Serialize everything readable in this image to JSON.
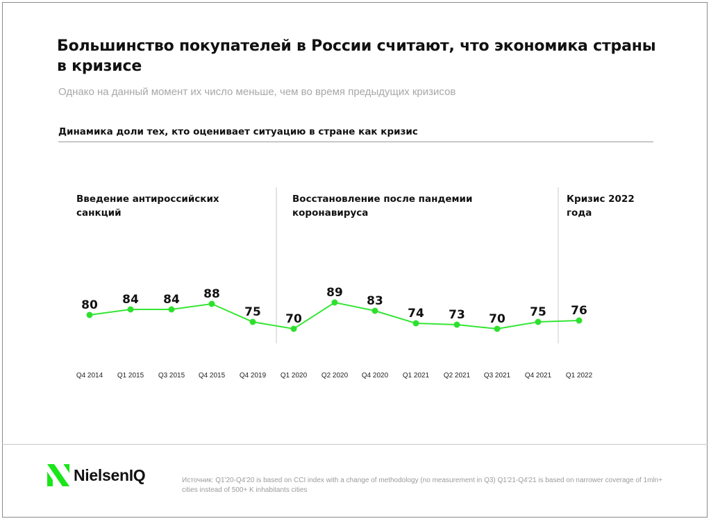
{
  "title": "Большинство покупателей в России считают, что экономика страны в кризисе",
  "subtitle": "Однако на данный момент их число меньше, чем во время предыдущих кризисов",
  "chart_heading": "Динамика доли тех, кто оценивает ситуацию в стране как кризис",
  "periods": [
    {
      "label": "Введение антироссийских санкций"
    },
    {
      "label": "Восстановление после пандемии коронавируса"
    },
    {
      "label": "Кризис 2022 года"
    }
  ],
  "logo_text": "NielsenIQ",
  "source": "Источник: Q1'20-Q4'20 is based on CCI index with a change of methodology (no measurement in Q3) Q1'21-Q4'21 is based on narrower coverage of 1mln+ cities instead of 500+ K inhabitants cities",
  "colors": {
    "line": "#33e633",
    "marker": "#2ee02e",
    "separator": "#c8c8c8",
    "logo_green": "#19e619"
  },
  "chart_data": {
    "type": "line",
    "categories": [
      "Q4 2014",
      "Q1 2015",
      "Q3 2015",
      "Q4 2015",
      "Q4 2019",
      "Q1 2020",
      "Q2 2020",
      "Q4 2020",
      "Q1 2021",
      "Q2 2021",
      "Q3 2021",
      "Q4 2021",
      "Q1 2022"
    ],
    "values": [
      80,
      84,
      84,
      88,
      75,
      70,
      89,
      83,
      74,
      73,
      70,
      75,
      76
    ],
    "data_labels": [
      "80",
      "84",
      "84",
      "88",
      "75",
      "70",
      "89",
      "83",
      "74",
      "73",
      "70",
      "75",
      "76"
    ],
    "title": "Динамика доли тех, кто оценивает ситуацию в стране как кризис",
    "xlabel": "",
    "ylabel": "",
    "grid": false,
    "legend": "none",
    "period_breaks_after": [
      "Q4 2019",
      "Q4 2021"
    ]
  }
}
